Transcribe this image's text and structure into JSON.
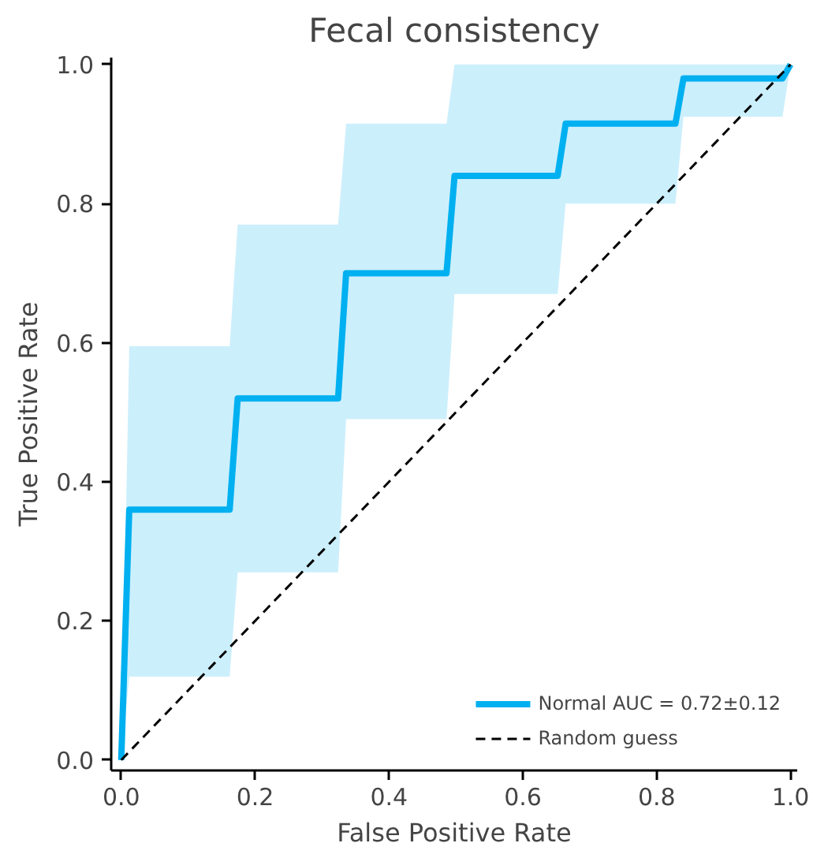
{
  "chart_data": {
    "type": "line",
    "title": "Fecal consistency",
    "xlabel": "False Positive Rate",
    "ylabel": "True Positive Rate",
    "xlim": [
      -0.015,
      1.01
    ],
    "ylim": [
      -0.015,
      1.01
    ],
    "xticks": [
      {
        "value": 0,
        "label": "0.0"
      },
      0.2,
      0.4,
      0.6,
      0.8,
      {
        "value": 1,
        "label": "1.0"
      }
    ],
    "yticks": [
      {
        "value": 0,
        "label": "0.0"
      },
      0.2,
      0.4,
      0.6,
      0.8,
      {
        "value": 1,
        "label": "1.0"
      }
    ],
    "grid": false,
    "legend": "bottom right",
    "series": [
      {
        "name": "Normal AUC = 0.72±0.12",
        "color": "#00b0f0",
        "line_style": "solid",
        "x": [
          0,
          0.012,
          0.162,
          0.174,
          0.324,
          0.336,
          0.486,
          0.498,
          0.652,
          0.664,
          0.828,
          0.84,
          0.988,
          1.0
        ],
        "values": [
          0,
          0.36,
          0.36,
          0.52,
          0.52,
          0.7,
          0.7,
          0.84,
          0.84,
          0.915,
          0.915,
          0.98,
          0.98,
          1.0
        ],
        "lower": [
          0,
          0.12,
          0.12,
          0.27,
          0.27,
          0.49,
          0.49,
          0.67,
          0.67,
          0.8,
          0.8,
          0.925,
          0.925,
          1.0
        ],
        "upper": [
          0,
          0.595,
          0.595,
          0.77,
          0.77,
          0.915,
          0.915,
          1.0,
          1.0,
          1.0,
          1.0,
          1.0,
          1.0,
          1.0
        ]
      },
      {
        "name": "Random guess",
        "color": "#000000",
        "line_style": "dashed",
        "x": [
          0,
          1
        ],
        "values": [
          0,
          1
        ]
      }
    ]
  }
}
